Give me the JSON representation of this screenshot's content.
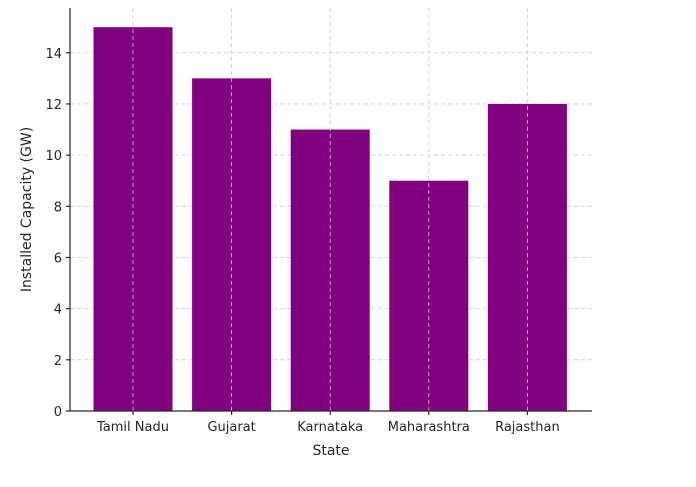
{
  "chart_data": {
    "type": "bar",
    "categories": [
      "Tamil Nadu",
      "Gujarat",
      "Karnataka",
      "Maharashtra",
      "Rajasthan"
    ],
    "values": [
      15,
      13,
      11,
      9,
      12
    ],
    "title": "",
    "xlabel": "State",
    "ylabel": "Installed Capacity (GW)",
    "ylim": [
      0,
      15.75
    ],
    "yticks": [
      0,
      2,
      4,
      6,
      8,
      10,
      12,
      14
    ],
    "grid": true,
    "bar_color": "#800080",
    "legend": "none"
  }
}
